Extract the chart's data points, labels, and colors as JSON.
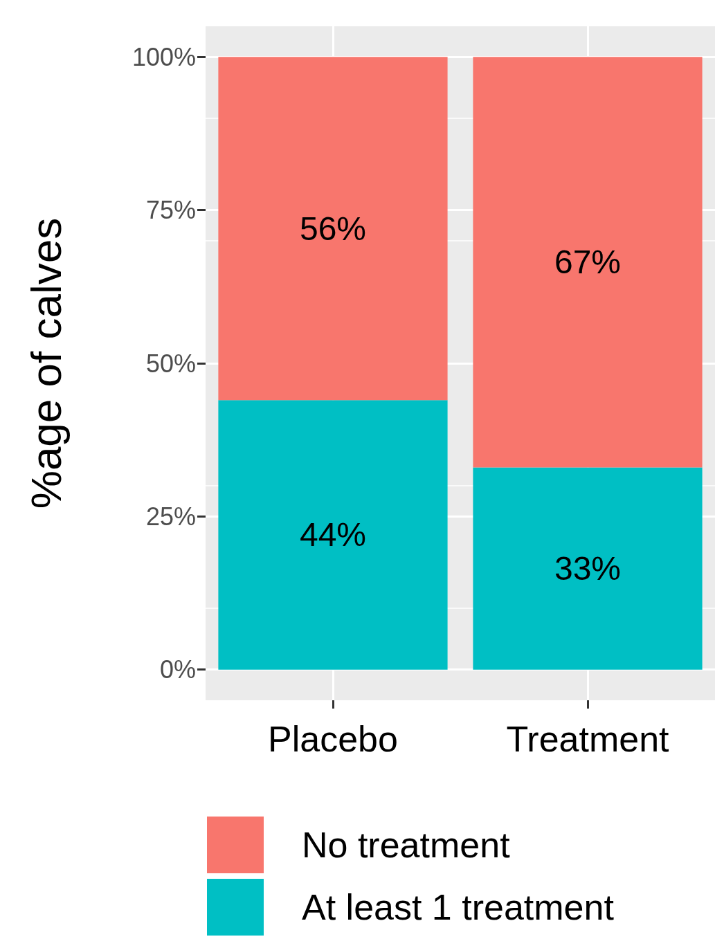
{
  "chart_data": {
    "type": "bar",
    "stacked": true,
    "ylabel": "%age of calves",
    "categories": [
      "Placebo",
      "Treatment"
    ],
    "series": [
      {
        "name": "At least 1 treatment",
        "color": "#00bfc4",
        "values": [
          44,
          33
        ],
        "value_labels": [
          "44%",
          "33%"
        ]
      },
      {
        "name": "No treatment",
        "color": "#f8766d",
        "values": [
          56,
          67
        ],
        "value_labels": [
          "56%",
          "67%"
        ]
      }
    ],
    "ylim": [
      -5,
      105
    ],
    "yticks": [
      {
        "value": 0,
        "label": "0%"
      },
      {
        "value": 25,
        "label": "25%"
      },
      {
        "value": 50,
        "label": "50%"
      },
      {
        "value": 75,
        "label": "75%"
      },
      {
        "value": 100,
        "label": "100%"
      }
    ],
    "grid": true,
    "legend": "bottom"
  }
}
